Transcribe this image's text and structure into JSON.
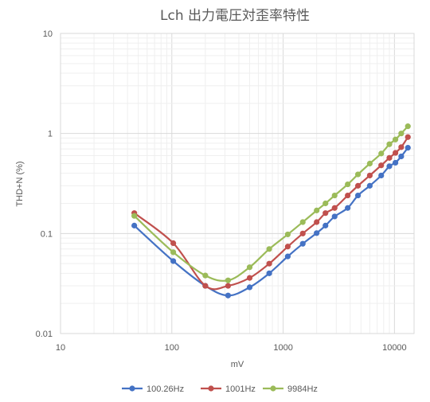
{
  "chart_data": {
    "type": "line",
    "title": "Lch 出力電圧対歪率特性",
    "xlabel": "mV",
    "ylabel": "THD+N (%)",
    "x_scale": "log",
    "y_scale": "log",
    "xlim": [
      10,
      15000
    ],
    "ylim": [
      0.01,
      10
    ],
    "x_ticks": [
      "10",
      "100",
      "1000",
      "10000"
    ],
    "y_ticks": [
      "0.01",
      "0.1",
      "1",
      "10"
    ],
    "grid": true,
    "legend_position": "bottom",
    "series": [
      {
        "name": "100.26Hz",
        "color": "#4472C4",
        "x": [
          46,
          103,
          200,
          320,
          500,
          750,
          1100,
          1500,
          2000,
          2400,
          2900,
          3800,
          4700,
          6000,
          7600,
          9000,
          10200,
          11500,
          13200
        ],
        "y": [
          0.12,
          0.053,
          0.03,
          0.024,
          0.029,
          0.04,
          0.059,
          0.079,
          0.101,
          0.12,
          0.148,
          0.18,
          0.24,
          0.3,
          0.38,
          0.47,
          0.51,
          0.59,
          0.72
        ]
      },
      {
        "name": "1001Hz",
        "color": "#C0504D",
        "x": [
          46,
          103,
          200,
          320,
          500,
          750,
          1100,
          1500,
          2000,
          2400,
          2900,
          3800,
          4700,
          6000,
          7600,
          9000,
          10200,
          11500,
          13200
        ],
        "y": [
          0.16,
          0.08,
          0.03,
          0.03,
          0.036,
          0.05,
          0.074,
          0.1,
          0.13,
          0.16,
          0.18,
          0.24,
          0.3,
          0.38,
          0.48,
          0.57,
          0.64,
          0.73,
          0.92
        ]
      },
      {
        "name": "9984Hz",
        "color": "#9BBB59",
        "x": [
          46,
          103,
          200,
          320,
          500,
          750,
          1100,
          1500,
          2000,
          2400,
          2900,
          3800,
          4700,
          6000,
          7600,
          9000,
          10200,
          11500,
          13200
        ],
        "y": [
          0.15,
          0.065,
          0.038,
          0.034,
          0.046,
          0.07,
          0.098,
          0.13,
          0.17,
          0.2,
          0.24,
          0.31,
          0.39,
          0.5,
          0.63,
          0.78,
          0.87,
          1.0,
          1.18
        ]
      }
    ]
  }
}
